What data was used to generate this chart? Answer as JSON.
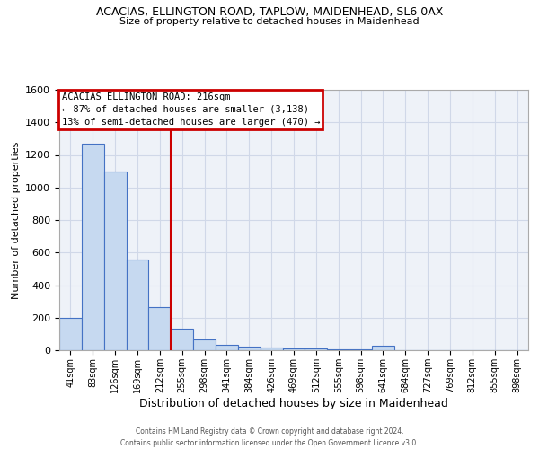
{
  "title1": "ACACIAS, ELLINGTON ROAD, TAPLOW, MAIDENHEAD, SL6 0AX",
  "title2": "Size of property relative to detached houses in Maidenhead",
  "xlabel": "Distribution of detached houses by size in Maidenhead",
  "ylabel": "Number of detached properties",
  "footer1": "Contains HM Land Registry data © Crown copyright and database right 2024.",
  "footer2": "Contains public sector information licensed under the Open Government Licence v3.0.",
  "bar_labels": [
    "41sqm",
    "83sqm",
    "126sqm",
    "169sqm",
    "212sqm",
    "255sqm",
    "298sqm",
    "341sqm",
    "384sqm",
    "426sqm",
    "469sqm",
    "512sqm",
    "555sqm",
    "598sqm",
    "641sqm",
    "684sqm",
    "727sqm",
    "769sqm",
    "812sqm",
    "855sqm",
    "898sqm"
  ],
  "bar_values": [
    200,
    1270,
    1100,
    555,
    265,
    130,
    65,
    35,
    20,
    15,
    10,
    10,
    5,
    5,
    25,
    0,
    0,
    0,
    0,
    0,
    0
  ],
  "bar_color": "#c6d9f0",
  "bar_edge_color": "#4472c4",
  "ylim": [
    0,
    1600
  ],
  "yticks": [
    0,
    200,
    400,
    600,
    800,
    1000,
    1200,
    1400,
    1600
  ],
  "red_line_x": 4.5,
  "annotation_title": "ACACIAS ELLINGTON ROAD: 216sqm",
  "annotation_line1": "← 87% of detached houses are smaller (3,138)",
  "annotation_line2": "13% of semi-detached houses are larger (470) →",
  "annotation_box_color": "#ffffff",
  "annotation_box_edge": "#cc0000",
  "grid_color": "#d0d8e8",
  "background_color": "#eef2f8"
}
